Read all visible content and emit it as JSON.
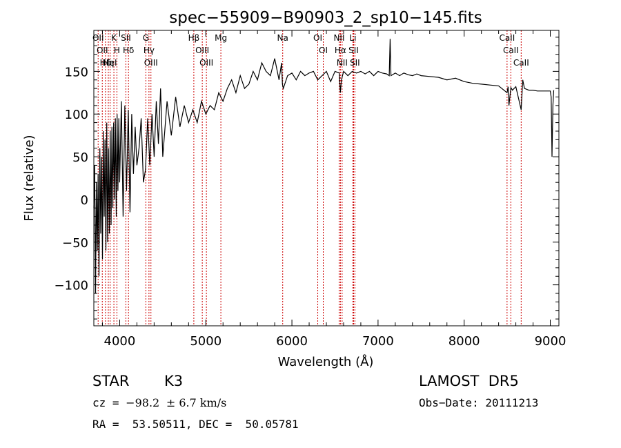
{
  "chart_data": {
    "type": "line",
    "title": "spec−55909−B90903_2_sp10−145.fits",
    "xlabel": "Wavelength (Å)",
    "ylabel": "Flux (relative)",
    "xlim": [
      3700,
      9100
    ],
    "ylim": [
      -148,
      198
    ],
    "xticks": [
      4000,
      5000,
      6000,
      7000,
      8000,
      9000
    ],
    "yticks": [
      -100,
      -50,
      0,
      50,
      100,
      150
    ],
    "ytick_labels": [
      "−100",
      "−50",
      "0",
      "50",
      "100",
      "150"
    ],
    "grid": false,
    "series": [
      {
        "color": "#000000",
        "x": [
          3700,
          3710,
          3720,
          3730,
          3740,
          3750,
          3760,
          3770,
          3780,
          3790,
          3800,
          3810,
          3820,
          3830,
          3840,
          3850,
          3860,
          3870,
          3880,
          3890,
          3900,
          3910,
          3920,
          3930,
          3940,
          3950,
          3960,
          3970,
          3980,
          3990,
          4000,
          4020,
          4040,
          4060,
          4080,
          4100,
          4120,
          4140,
          4160,
          4180,
          4200,
          4225,
          4250,
          4275,
          4300,
          4325,
          4350,
          4375,
          4400,
          4425,
          4450,
          4475,
          4500,
          4550,
          4600,
          4650,
          4700,
          4750,
          4800,
          4850,
          4900,
          4950,
          5000,
          5050,
          5100,
          5150,
          5200,
          5250,
          5300,
          5350,
          5400,
          5450,
          5500,
          5550,
          5600,
          5650,
          5700,
          5750,
          5800,
          5850,
          5880,
          5890,
          5900,
          5950,
          6000,
          6050,
          6100,
          6150,
          6200,
          6250,
          6300,
          6350,
          6400,
          6450,
          6500,
          6550,
          6563,
          6575,
          6600,
          6650,
          6700,
          6750,
          6800,
          6850,
          6900,
          6950,
          7000,
          7050,
          7100,
          7130,
          7140,
          7150,
          7200,
          7250,
          7300,
          7350,
          7400,
          7450,
          7500,
          7600,
          7700,
          7800,
          7900,
          8000,
          8100,
          8200,
          8300,
          8400,
          8498,
          8510,
          8520,
          8542,
          8560,
          8600,
          8662,
          8680,
          8700,
          8750,
          8800,
          8850,
          8900,
          8950,
          9000,
          9010,
          9020,
          9030,
          9040
        ],
        "y": [
          -10,
          40,
          -110,
          20,
          -60,
          30,
          -90,
          60,
          -40,
          50,
          -70,
          80,
          -20,
          70,
          -60,
          90,
          -50,
          60,
          -40,
          80,
          -30,
          85,
          -10,
          90,
          0,
          95,
          -20,
          100,
          10,
          95,
          20,
          115,
          -20,
          110,
          10,
          105,
          -15,
          100,
          30,
          85,
          40,
          60,
          95,
          20,
          35,
          95,
          40,
          100,
          50,
          115,
          65,
          130,
          50,
          115,
          75,
          120,
          85,
          110,
          90,
          105,
          90,
          115,
          100,
          110,
          105,
          125,
          115,
          130,
          140,
          125,
          145,
          130,
          135,
          150,
          140,
          160,
          150,
          145,
          165,
          140,
          160,
          135,
          130,
          145,
          148,
          140,
          150,
          145,
          148,
          150,
          140,
          145,
          150,
          138,
          150,
          148,
          125,
          140,
          150,
          145,
          150,
          148,
          150,
          147,
          150,
          145,
          150,
          148,
          147,
          145,
          188,
          145,
          148,
          145,
          148,
          146,
          145,
          147,
          145,
          144,
          143,
          140,
          142,
          138,
          136,
          135,
          134,
          133,
          125,
          132,
          110,
          131,
          128,
          132,
          105,
          140,
          130,
          128,
          128,
          127,
          127,
          127,
          127,
          120,
          50,
          110,
          128
        ]
      }
    ],
    "line_markers": [
      {
        "wl": 3750,
        "labels": [
          "OII"
        ]
      },
      {
        "wl": 3798,
        "labels": [
          "OII"
        ]
      },
      {
        "wl": 3835,
        "labels": [
          "Hδ"
        ]
      },
      {
        "wl": 3868,
        "labels": [
          "Hη"
        ]
      },
      {
        "wl": 3889,
        "labels": [
          "HeI"
        ]
      },
      {
        "wl": 3933,
        "labels": [
          "K"
        ]
      },
      {
        "wl": 3968,
        "labels": [
          "H"
        ]
      },
      {
        "wl": 4072,
        "labels": [
          "SII"
        ]
      },
      {
        "wl": 4102,
        "labels": [
          "Hδ"
        ]
      },
      {
        "wl": 4304,
        "labels": [
          "G"
        ]
      },
      {
        "wl": 4340,
        "labels": [
          "Hγ"
        ]
      },
      {
        "wl": 4363,
        "labels": [
          "OIII"
        ]
      },
      {
        "wl": 4861,
        "labels": [
          "Hβ"
        ]
      },
      {
        "wl": 4959,
        "labels": [
          "OIII"
        ]
      },
      {
        "wl": 5007,
        "labels": [
          "OIII"
        ]
      },
      {
        "wl": 5175,
        "labels": [
          "Mg"
        ]
      },
      {
        "wl": 5893,
        "labels": [
          "Na"
        ]
      },
      {
        "wl": 6300,
        "labels": [
          "OI"
        ]
      },
      {
        "wl": 6364,
        "labels": [
          "OI"
        ]
      },
      {
        "wl": 6548,
        "labels": [
          "NII"
        ]
      },
      {
        "wl": 6563,
        "labels": [
          "Hα"
        ]
      },
      {
        "wl": 6583,
        "labels": [
          "NII"
        ]
      },
      {
        "wl": 6708,
        "labels": [
          "Li"
        ]
      },
      {
        "wl": 6716,
        "labels": [
          "SII"
        ]
      },
      {
        "wl": 6731,
        "labels": [
          "SII"
        ]
      },
      {
        "wl": 8498,
        "labels": [
          "CaII"
        ]
      },
      {
        "wl": 8542,
        "labels": [
          "CaII"
        ]
      },
      {
        "wl": 8662,
        "labels": [
          "CaII"
        ]
      }
    ],
    "marker_color": "#cc0000"
  },
  "info": {
    "class": "STAR",
    "subclass": "K3",
    "survey": "LAMOST  DR5",
    "cz_label": "cz = ",
    "cz_value": "−98.2",
    "cz_err": "± 6.7 km/s",
    "obs_date": "Obs−Date: 20111213",
    "radec": "RA =  53.50511, DEC =  50.05781"
  }
}
